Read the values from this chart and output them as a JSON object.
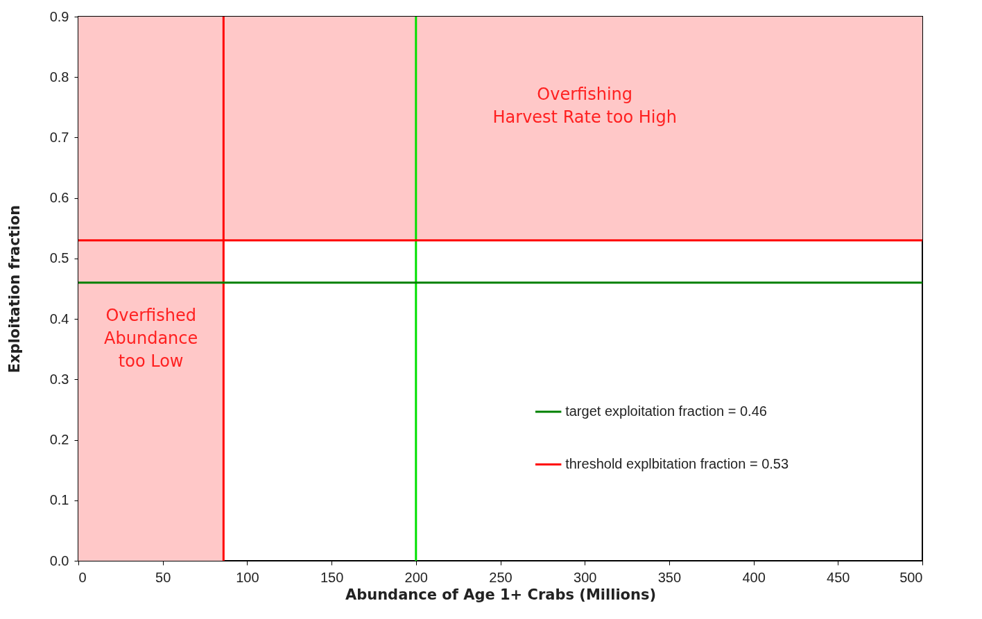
{
  "chart_data": {
    "type": "line",
    "xlabel": "Abundance of Age 1+ Crabs (Millions)",
    "ylabel": "Exploitation fraction",
    "xlim": [
      0,
      500
    ],
    "xticks": [
      0,
      50,
      100,
      150,
      200,
      250,
      300,
      350,
      400,
      450,
      500
    ],
    "ylim": [
      0,
      0.9
    ],
    "yticks": [
      {
        "value": 0,
        "label": "0.0"
      },
      0.1,
      0.2,
      0.3,
      0.4,
      0.5,
      0.6,
      0.7,
      0.8,
      0.9
    ],
    "grid": false,
    "legend": "bottom right",
    "bands": [
      {
        "axis": "y",
        "from": 0.53,
        "to": 0.9,
        "label": "Overfishing\nHarvest Rate too High",
        "color": "#ffc8c8"
      },
      {
        "axis": "x",
        "from": 0,
        "to": 86,
        "label": "Overfished\nAbundance\ntoo Low",
        "color": "#ffc8c8"
      }
    ],
    "ref_lines": [
      {
        "axis": "x",
        "value": 86,
        "color": "#ff0000"
      },
      {
        "axis": "x",
        "value": 200,
        "color": "#00e000"
      },
      {
        "axis": "y",
        "value": 0.46,
        "label": "target exploitation fraction = 0.46",
        "color": "#008000"
      },
      {
        "axis": "y",
        "value": 0.53,
        "label": "threshold explbitation fraction = 0.53",
        "color": "#ff0000"
      }
    ]
  }
}
